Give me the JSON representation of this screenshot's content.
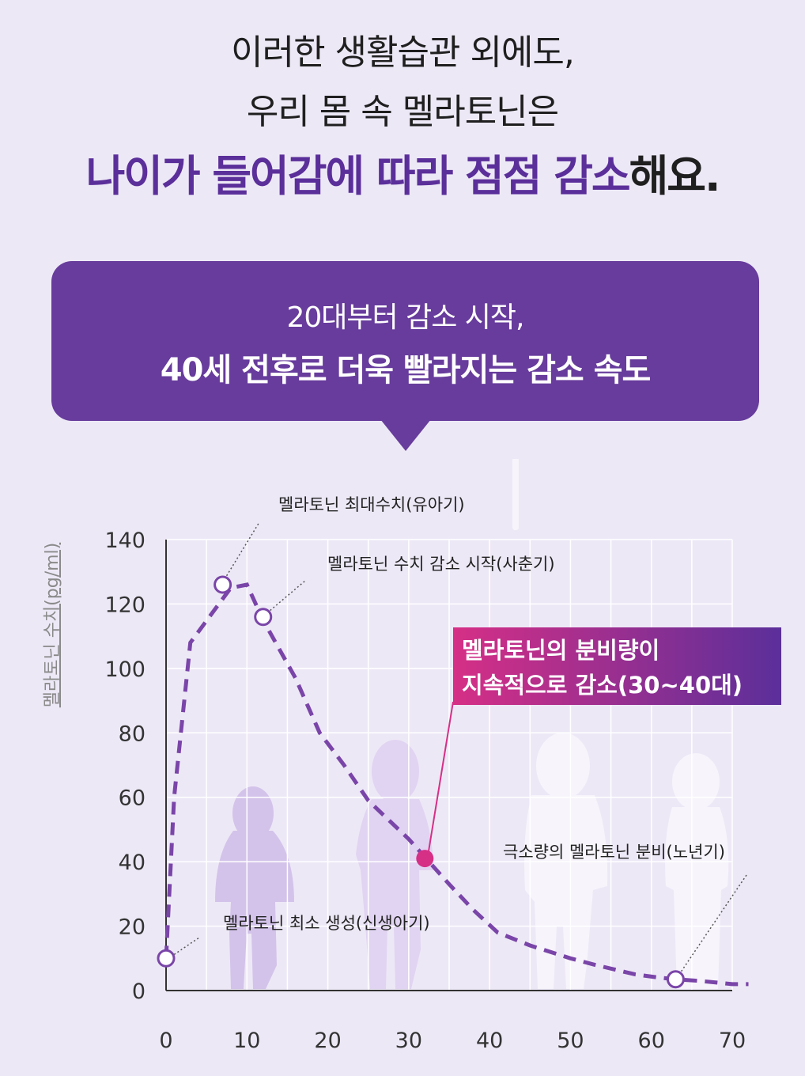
{
  "headline": {
    "line1": "이러한 생활습관 외에도,",
    "line2": "우리 몸 속 멜라토닌은",
    "line3_accent": "나이가 들어감에 따라 점점 감소",
    "line3_tail": "해요."
  },
  "bubble": {
    "line1": "20대부터 감소 시작,",
    "line2": "40세 전후로 더욱 빨라지는 감소 속도"
  },
  "chart_data": {
    "type": "line",
    "xlabel": "",
    "ylabel": "멜라토닌 수치(pg/ml)",
    "xlim": [
      0,
      70
    ],
    "ylim": [
      0,
      140
    ],
    "x_ticks": [
      0,
      10,
      20,
      30,
      40,
      50,
      60,
      70
    ],
    "y_ticks": [
      0,
      20,
      40,
      60,
      80,
      100,
      120,
      140
    ],
    "grid": true,
    "series": [
      {
        "line_style": "dashed",
        "color": "#7a45a8",
        "x": [
          0,
          1,
          3,
          8,
          10,
          12,
          16,
          19,
          22,
          25,
          30,
          35,
          38,
          41,
          45,
          50,
          53,
          58,
          61,
          63,
          66,
          70,
          72
        ],
        "y": [
          10,
          60,
          108,
          125,
          126,
          115,
          97,
          80,
          70,
          59,
          47,
          33,
          25,
          18,
          14,
          10,
          8,
          5,
          4,
          3.5,
          3,
          2,
          2
        ]
      }
    ],
    "points": [
      {
        "x": 0,
        "y": 10,
        "style": "open"
      },
      {
        "x": 7,
        "y": 126,
        "style": "open"
      },
      {
        "x": 12,
        "y": 116,
        "style": "open"
      },
      {
        "x": 63,
        "y": 3.5,
        "style": "open"
      },
      {
        "x": 32,
        "y": 41,
        "style": "filled",
        "color": "#d62f86"
      }
    ],
    "annotations": [
      {
        "text": "멜라토닌 최대수치(유아기)"
      },
      {
        "text": "멜라토닌 수치 감소 시작(사춘기)"
      },
      {
        "text": "극소량의 멜라토닌 분비(노년기)"
      },
      {
        "text": "멜라토닌 최소 생성(신생아기)"
      },
      {
        "text_line1": "멜라토닌의 분비량이",
        "text_line2": "지속적으로 감소(30~40대)",
        "color_start": "#d62f86",
        "color_end": "#5b2f9a"
      }
    ]
  }
}
